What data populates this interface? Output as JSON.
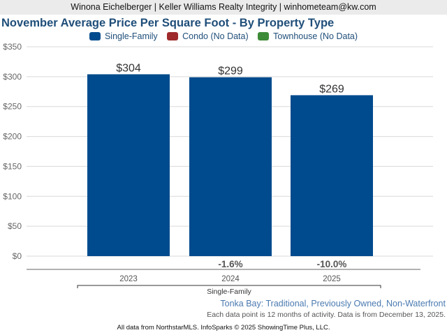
{
  "header": {
    "text": "Winona Eichelberger | Keller Williams Realty Integrity | winhometeam@kw.com"
  },
  "legend": [
    {
      "label": "Single-Family",
      "color": "#004b8d"
    },
    {
      "label": "Condo (No Data)",
      "color": "#9e2a2b"
    },
    {
      "label": "Townhouse (No Data)",
      "color": "#3d8b37"
    }
  ],
  "chart_data": {
    "type": "bar",
    "title": "November Average Price Per Square Foot - By Property Type",
    "categories": [
      "2023",
      "2024",
      "2025"
    ],
    "series": [
      {
        "name": "Single-Family",
        "values": [
          304,
          299,
          269
        ],
        "color": "#004b8d"
      }
    ],
    "data_labels": [
      "$304",
      "$299",
      "$269"
    ],
    "change_labels": [
      "",
      "-1.6%",
      "-10.0%"
    ],
    "group_label": "Single-Family",
    "ylim": [
      0,
      350
    ],
    "yticks": [
      0,
      50,
      100,
      150,
      200,
      250,
      300,
      350
    ],
    "ytick_labels": [
      "$0",
      "$50",
      "$100",
      "$150",
      "$200",
      "$250",
      "$300",
      "$350"
    ],
    "grid": true
  },
  "footer": {
    "area": "Tonka Bay: Traditional, Previously Owned, Non-Waterfront",
    "note": "Each data point is 12 months of activity. Data is from December 13, 2025.",
    "credit": "All data from NorthstarMLS. InfoSparks © 2025 ShowingTime Plus, LLC."
  }
}
